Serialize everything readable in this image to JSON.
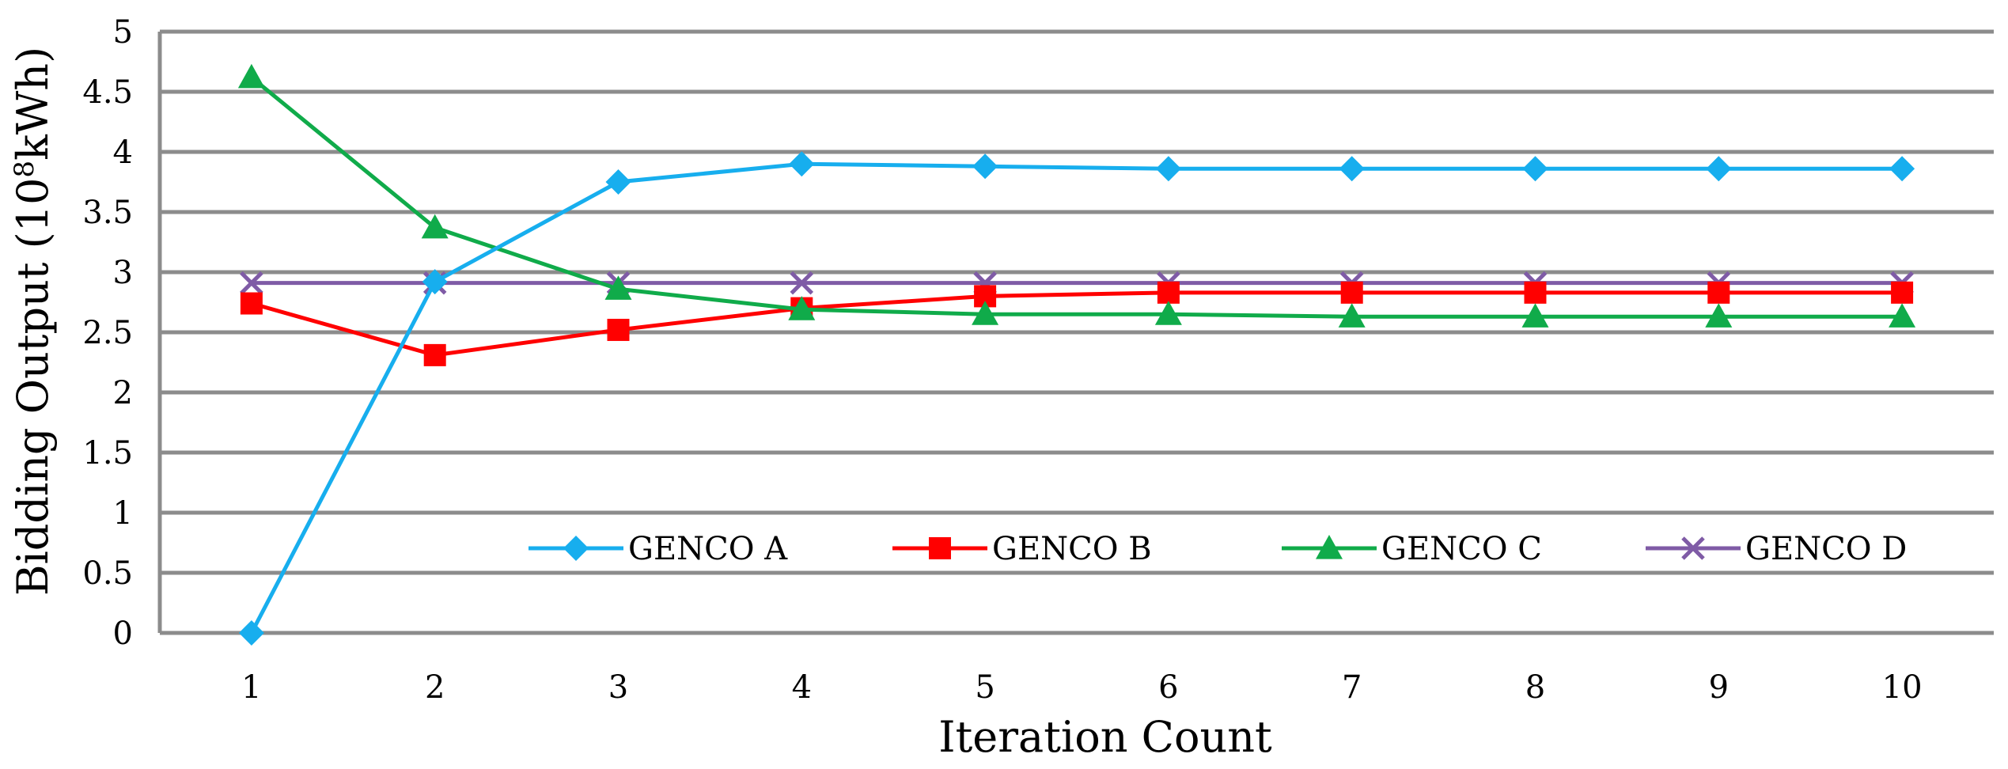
{
  "chart_data": {
    "type": "line",
    "title": "",
    "xlabel": "Iteration Count",
    "ylabel": "Bidding Output (10",
    "ylabel_sup": "8",
    "ylabel_suffix": "kWh)",
    "x": [
      1,
      2,
      3,
      4,
      5,
      6,
      7,
      8,
      9,
      10
    ],
    "x_tick_labels": [
      "1",
      "2",
      "3",
      "4",
      "5",
      "6",
      "7",
      "8",
      "9",
      "10"
    ],
    "ylim": [
      0,
      5
    ],
    "y_ticks": [
      0,
      0.5,
      1,
      1.5,
      2,
      2.5,
      3,
      3.5,
      4,
      4.5,
      5
    ],
    "y_tick_labels": [
      "0",
      "0.5",
      "1",
      "1.5",
      "2",
      "2.5",
      "3",
      "3.5",
      "4",
      "4.5",
      "5"
    ],
    "grid": true,
    "legend_position": "bottom-right",
    "series": [
      {
        "name": "GENCO A",
        "color": "#17AEEE",
        "marker": "diamond",
        "values": [
          0,
          2.92,
          3.75,
          3.9,
          3.88,
          3.86,
          3.86,
          3.86,
          3.86,
          3.86
        ]
      },
      {
        "name": "GENCO B",
        "color": "#FF0000",
        "marker": "square",
        "values": [
          2.74,
          2.31,
          2.52,
          2.7,
          2.8,
          2.83,
          2.83,
          2.83,
          2.83,
          2.83
        ]
      },
      {
        "name": "GENCO C",
        "color": "#10AB4A",
        "marker": "triangle",
        "values": [
          4.62,
          3.37,
          2.86,
          2.69,
          2.65,
          2.65,
          2.63,
          2.63,
          2.63,
          2.63
        ]
      },
      {
        "name": "GENCO D",
        "color": "#7F5BA6",
        "marker": "x",
        "values": [
          2.91,
          2.91,
          2.91,
          2.91,
          2.91,
          2.91,
          2.91,
          2.91,
          2.91,
          2.91
        ]
      }
    ]
  }
}
